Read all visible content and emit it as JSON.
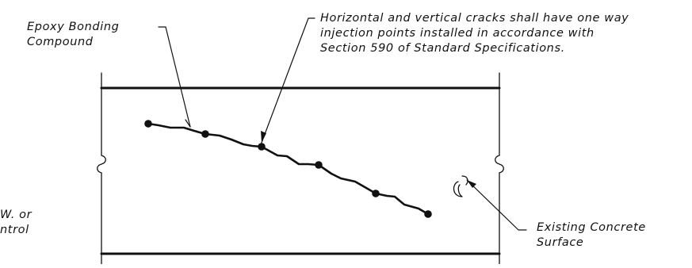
{
  "labels": {
    "epoxy": [
      "Epoxy Bonding",
      "Compound"
    ],
    "cracks": [
      "Horizontal and vertical cracks shall have one way",
      "injection points installed in accordance with",
      "Section 590 of Standard Specifications."
    ],
    "partial_left": [
      "W. or",
      "ntrol"
    ],
    "surface": [
      "Existing Concrete",
      "Surface"
    ]
  },
  "injection_point_count": 6
}
